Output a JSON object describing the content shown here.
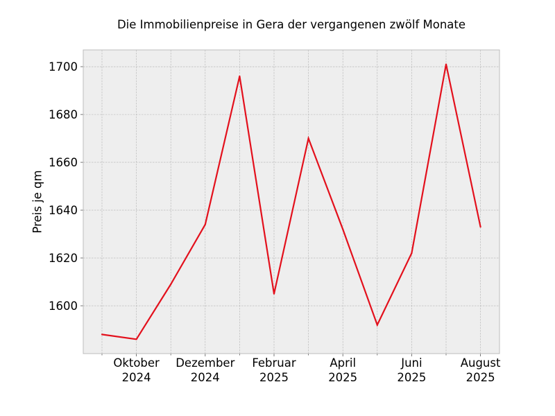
{
  "chart_data": {
    "type": "line",
    "title": "Die Immobilienpreise in Gera der vergangenen zwölf Monate",
    "xlabel": "",
    "ylabel": "Preis je qm",
    "x": [
      "2024-09",
      "2024-10",
      "2024-11",
      "2024-12",
      "2025-01",
      "2025-02",
      "2025-03",
      "2025-04",
      "2025-05",
      "2025-06",
      "2025-07",
      "2025-08"
    ],
    "x_tick_labels": [
      {
        "month": "Oktober",
        "year": "2024"
      },
      {
        "month": "Dezember",
        "year": "2024"
      },
      {
        "month": "Februar",
        "year": "2025"
      },
      {
        "month": "April",
        "year": "2025"
      },
      {
        "month": "Juni",
        "year": "2025"
      },
      {
        "month": "August",
        "year": "2025"
      }
    ],
    "y_ticks": [
      1600,
      1620,
      1640,
      1660,
      1680,
      1700
    ],
    "ylim": [
      1580,
      1707
    ],
    "series": [
      {
        "values": [
          1588,
          1586,
          1609,
          1634,
          1696,
          1605,
          1670,
          1632,
          1592,
          1622,
          1701,
          1633
        ]
      }
    ],
    "line_color": "#e3101c",
    "background_color": "#eeeeee",
    "grid": true,
    "legend": false
  }
}
